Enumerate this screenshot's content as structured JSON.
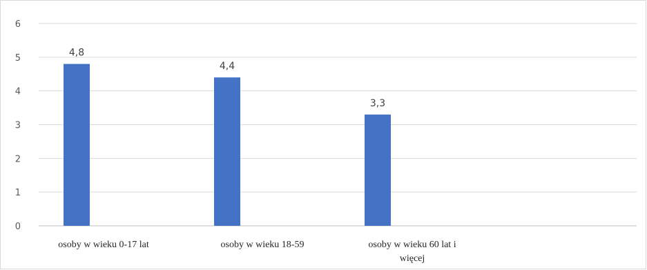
{
  "chart_data": {
    "type": "bar",
    "title": "",
    "xlabel": "",
    "ylabel": "",
    "ylim": [
      0,
      6
    ],
    "yticks": [
      0,
      1,
      2,
      3,
      4,
      5,
      6
    ],
    "grid": true,
    "bar_color": "#4472c4",
    "categories": [
      [
        "osoby  w wieku 0-17 lat"
      ],
      [
        "osoby w wieku 18-59"
      ],
      [
        "osoby w wieku 60 lat i",
        "więcej"
      ]
    ],
    "values": [
      4.8,
      4.4,
      3.3
    ],
    "data_labels": [
      "4,8",
      "4,4",
      "3,3"
    ]
  }
}
